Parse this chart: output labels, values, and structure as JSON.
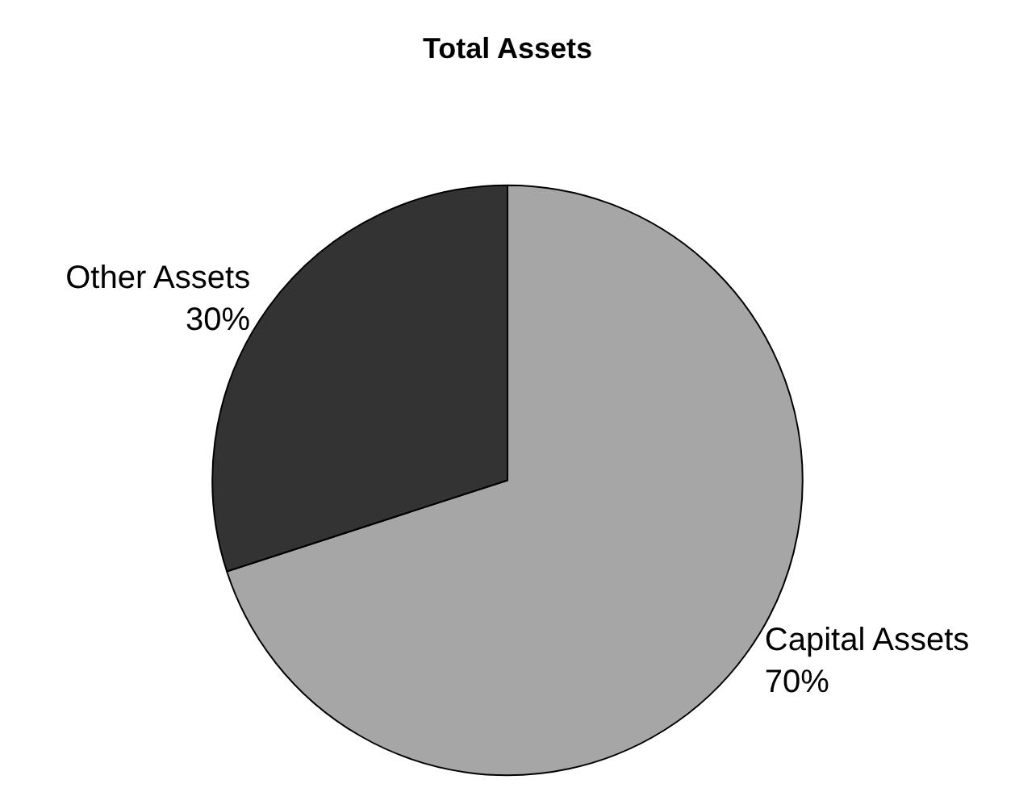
{
  "chart_data": {
    "type": "pie",
    "title": "Total Assets",
    "categories": [
      "Capital Assets",
      "Other Assets"
    ],
    "values": [
      70,
      30
    ],
    "value_labels": [
      "70%",
      "30%"
    ],
    "colors": [
      "#a6a6a6",
      "#333333"
    ],
    "legend": false
  }
}
